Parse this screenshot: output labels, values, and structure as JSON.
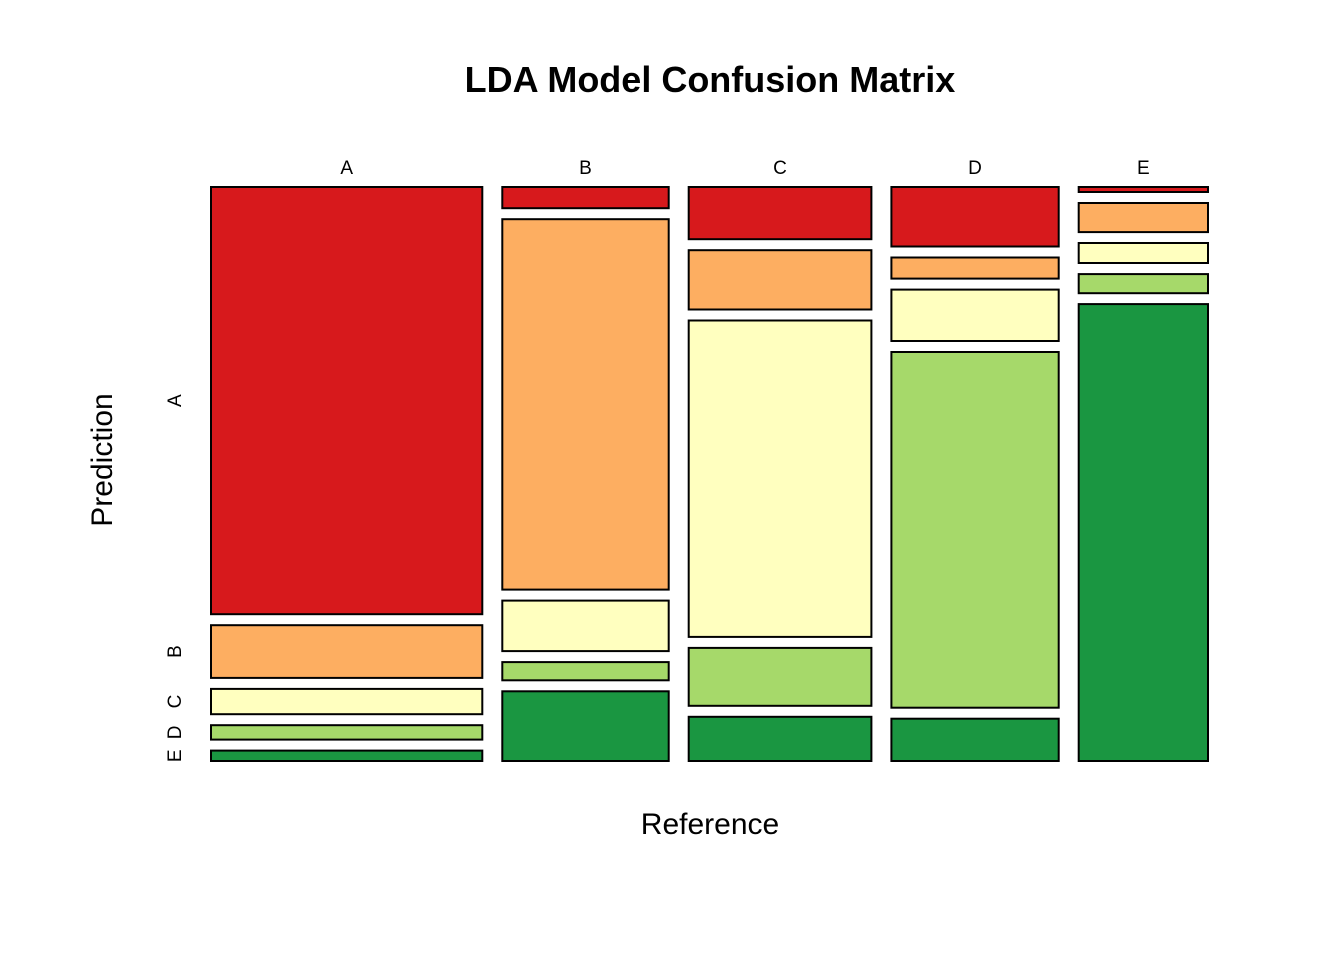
{
  "chart_data": {
    "type": "mosaic",
    "title": "LDA Model Confusion Matrix",
    "xlabel": "Reference",
    "ylabel": "Prediction",
    "reference_levels": [
      "A",
      "B",
      "C",
      "D",
      "E"
    ],
    "prediction_levels": [
      "A",
      "B",
      "C",
      "D",
      "E"
    ],
    "prediction_colors": [
      "#D7191C",
      "#FDAE61",
      "#FFFFBF",
      "#A6D96A",
      "#1A9641"
    ],
    "columns": [
      {
        "reference": "A",
        "width_share": 0.3,
        "counts": {
          "A": 0.7758,
          "B": 0.0957,
          "C": 0.0459,
          "D": 0.0262,
          "E": 0.0189
        }
      },
      {
        "reference": "B",
        "width_share": 0.184,
        "counts": {
          "A": 0.0387,
          "B": 0.6764,
          "C": 0.0923,
          "D": 0.0332,
          "E": 0.1273
        }
      },
      {
        "reference": "C",
        "width_share": 0.202,
        "counts": {
          "A": 0.0959,
          "B": 0.109,
          "C": 0.5812,
          "D": 0.1063,
          "E": 0.0812
        }
      },
      {
        "reference": "D",
        "width_share": 0.185,
        "counts": {
          "A": 0.1089,
          "B": 0.0387,
          "C": 0.0941,
          "D": 0.6513,
          "E": 0.0775
        }
      },
      {
        "reference": "E",
        "width_share": 0.143,
        "counts": {
          "A": 0.0092,
          "B": 0.0535,
          "C": 0.0369,
          "D": 0.0351,
          "E": 0.8413
        }
      }
    ]
  }
}
